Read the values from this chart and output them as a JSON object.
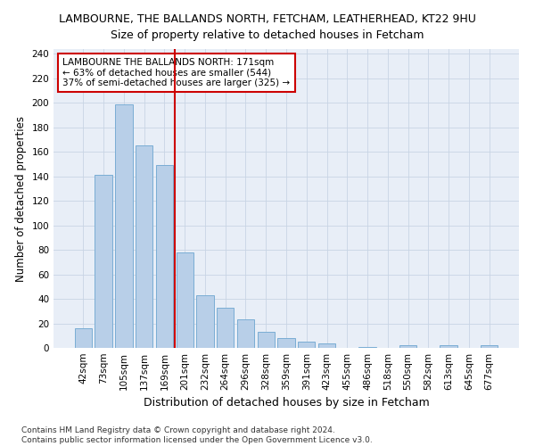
{
  "title": "LAMBOURNE, THE BALLANDS NORTH, FETCHAM, LEATHERHEAD, KT22 9HU",
  "subtitle": "Size of property relative to detached houses in Fetcham",
  "xlabel": "Distribution of detached houses by size in Fetcham",
  "ylabel": "Number of detached properties",
  "categories": [
    "42sqm",
    "73sqm",
    "105sqm",
    "137sqm",
    "169sqm",
    "201sqm",
    "232sqm",
    "264sqm",
    "296sqm",
    "328sqm",
    "359sqm",
    "391sqm",
    "423sqm",
    "455sqm",
    "486sqm",
    "518sqm",
    "550sqm",
    "582sqm",
    "613sqm",
    "645sqm",
    "677sqm"
  ],
  "values": [
    16,
    141,
    199,
    165,
    149,
    78,
    43,
    33,
    23,
    13,
    8,
    5,
    4,
    0,
    1,
    0,
    2,
    0,
    2,
    0,
    2
  ],
  "bar_color": "#b8cfe8",
  "bar_edge_color": "#7aadd4",
  "vline_color": "#cc0000",
  "vline_index": 4.5,
  "annotation_line1": "LAMBOURNE THE BALLANDS NORTH: 171sqm",
  "annotation_line2": "← 63% of detached houses are smaller (544)",
  "annotation_line3": "37% of semi-detached houses are larger (325) →",
  "annotation_box_color": "#ffffff",
  "annotation_box_edge": "#cc0000",
  "ylim": [
    0,
    244
  ],
  "yticks": [
    0,
    20,
    40,
    60,
    80,
    100,
    120,
    140,
    160,
    180,
    200,
    220,
    240
  ],
  "footer": "Contains HM Land Registry data © Crown copyright and database right 2024.\nContains public sector information licensed under the Open Government Licence v3.0.",
  "title_fontsize": 9,
  "subtitle_fontsize": 9,
  "xlabel_fontsize": 9,
  "ylabel_fontsize": 8.5,
  "tick_fontsize": 7.5,
  "annotation_fontsize": 7.5,
  "footer_fontsize": 6.5,
  "bg_color": "#e8eef7"
}
